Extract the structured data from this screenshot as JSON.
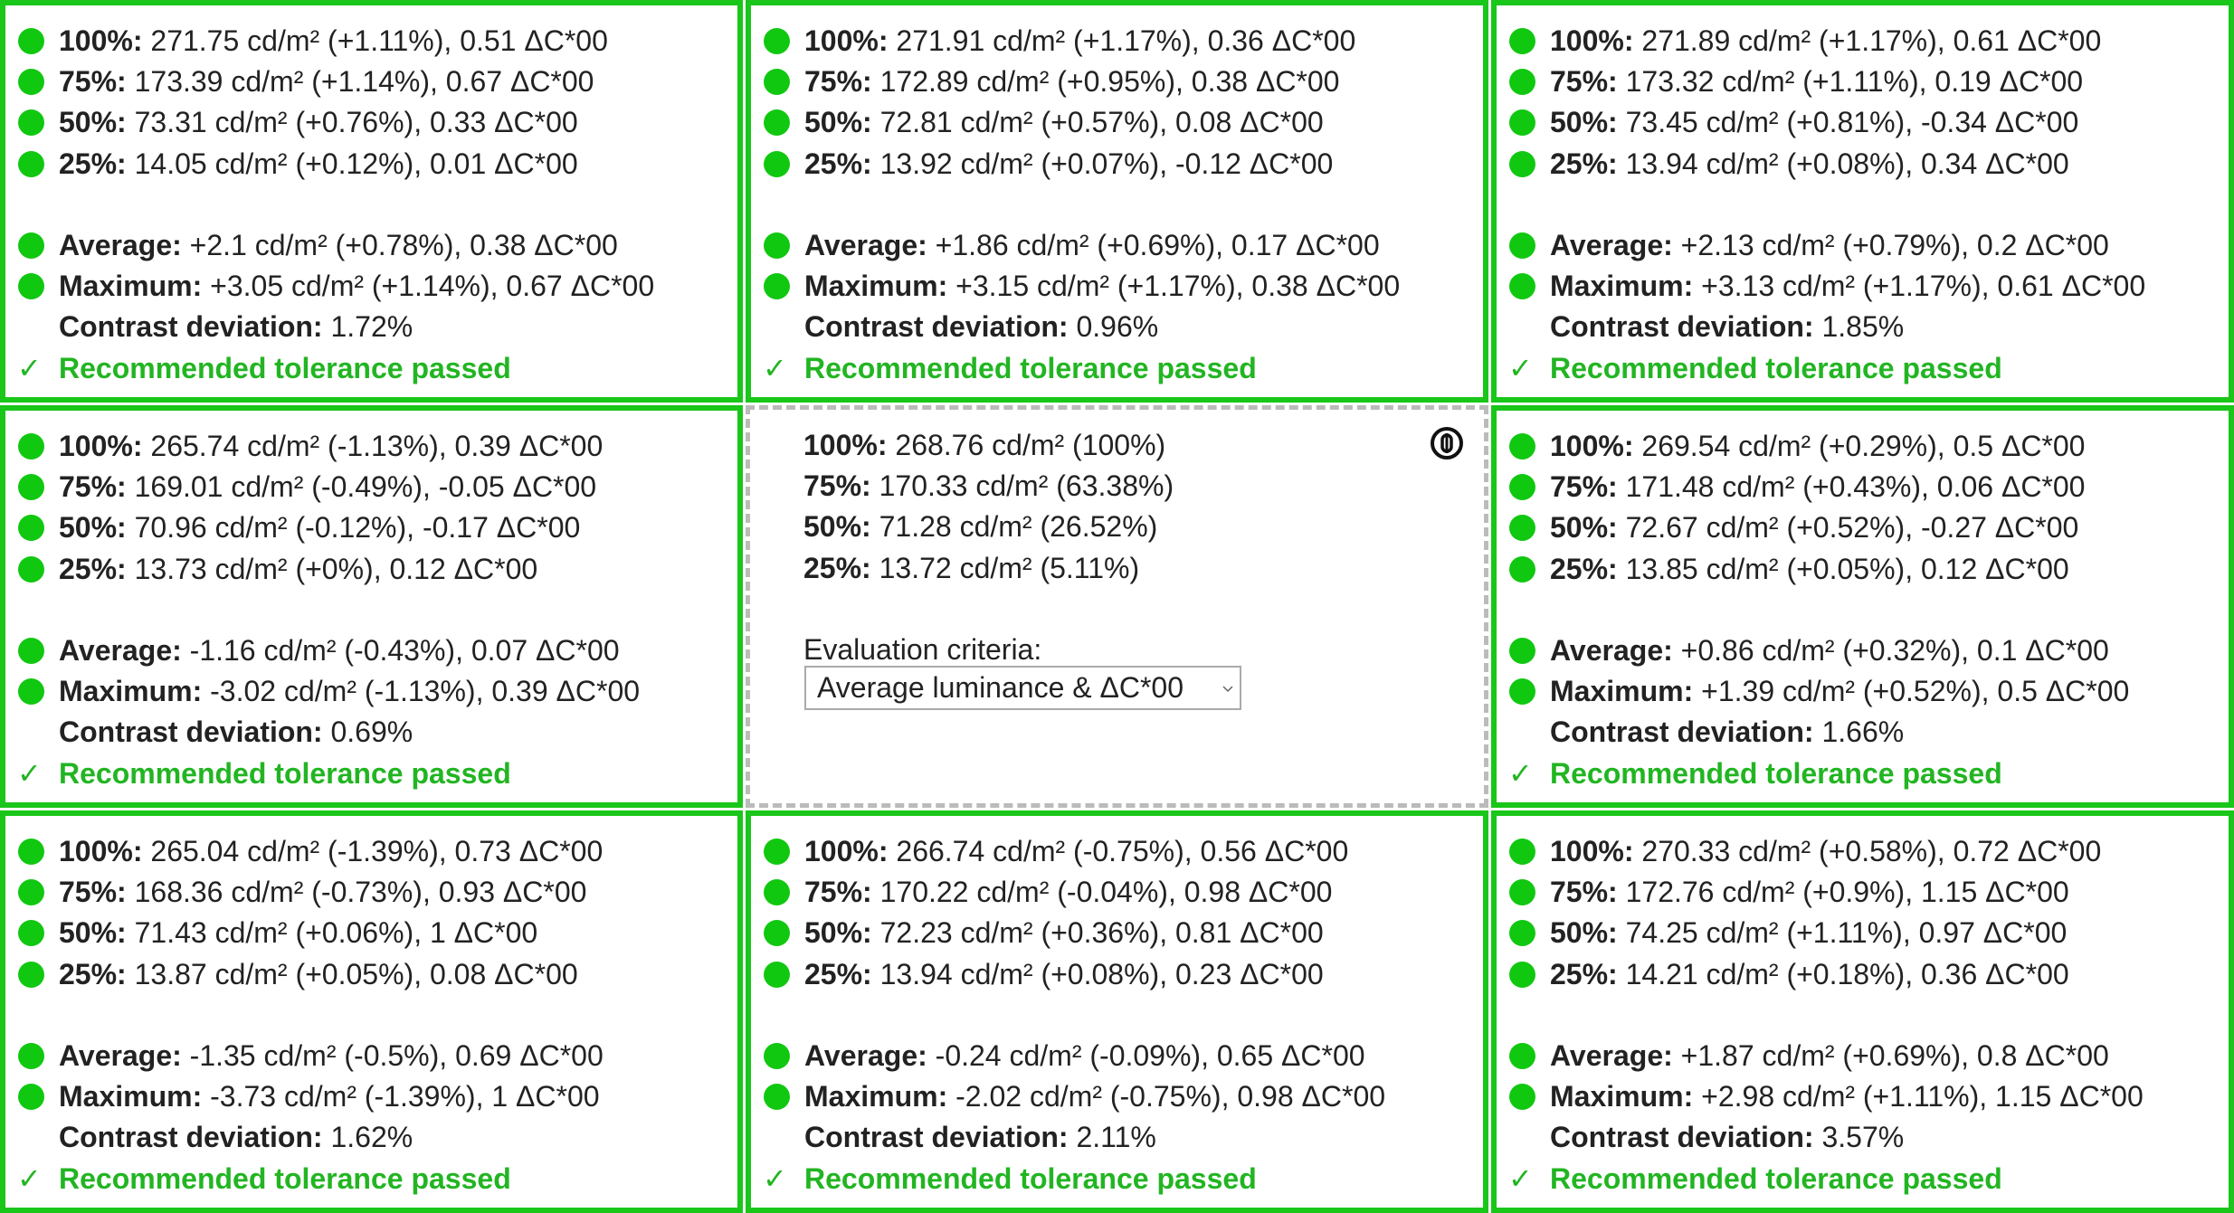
{
  "cells": [
    {
      "measurements": [
        {
          "label": "100%:",
          "text": "271.75 cd/m² (+1.11%), 0.51 ΔC*00"
        },
        {
          "label": "75%:",
          "text": "173.39 cd/m² (+1.14%), 0.67 ΔC*00"
        },
        {
          "label": "50%:",
          "text": "73.31 cd/m² (+0.76%), 0.33 ΔC*00"
        },
        {
          "label": "25%:",
          "text": "14.05 cd/m² (+0.12%), 0.01 ΔC*00"
        }
      ],
      "summary": [
        {
          "label": "Average:",
          "text": "+2.1 cd/m² (+0.78%), 0.38 ΔC*00"
        },
        {
          "label": "Maximum:",
          "text": "+3.05 cd/m² (+1.14%), 0.67 ΔC*00"
        }
      ],
      "contrast": {
        "label": "Contrast deviation:",
        "text": "1.72%"
      },
      "result": {
        "check": "✓",
        "text": "Recommended tolerance passed"
      }
    },
    {
      "measurements": [
        {
          "label": "100%:",
          "text": "271.91 cd/m² (+1.17%), 0.36 ΔC*00"
        },
        {
          "label": "75%:",
          "text": "172.89 cd/m² (+0.95%), 0.38 ΔC*00"
        },
        {
          "label": "50%:",
          "text": "72.81 cd/m² (+0.57%), 0.08 ΔC*00"
        },
        {
          "label": "25%:",
          "text": "13.92 cd/m² (+0.07%), -0.12 ΔC*00"
        }
      ],
      "summary": [
        {
          "label": "Average:",
          "text": "+1.86 cd/m² (+0.69%), 0.17 ΔC*00"
        },
        {
          "label": "Maximum:",
          "text": "+3.15 cd/m² (+1.17%), 0.38 ΔC*00"
        }
      ],
      "contrast": {
        "label": "Contrast deviation:",
        "text": "0.96%"
      },
      "result": {
        "check": "✓",
        "text": "Recommended tolerance passed"
      }
    },
    {
      "measurements": [
        {
          "label": "100%:",
          "text": "271.89 cd/m² (+1.17%), 0.61 ΔC*00"
        },
        {
          "label": "75%:",
          "text": "173.32 cd/m² (+1.11%), 0.19 ΔC*00"
        },
        {
          "label": "50%:",
          "text": "73.45 cd/m² (+0.81%), -0.34 ΔC*00"
        },
        {
          "label": "25%:",
          "text": "13.94 cd/m² (+0.08%), 0.34 ΔC*00"
        }
      ],
      "summary": [
        {
          "label": "Average:",
          "text": "+2.13 cd/m² (+0.79%), 0.2 ΔC*00"
        },
        {
          "label": "Maximum:",
          "text": "+3.13 cd/m² (+1.17%), 0.61 ΔC*00"
        }
      ],
      "contrast": {
        "label": "Contrast deviation:",
        "text": "1.85%"
      },
      "result": {
        "check": "✓",
        "text": "Recommended tolerance passed"
      }
    },
    {
      "measurements": [
        {
          "label": "100%:",
          "text": "265.74 cd/m² (-1.13%), 0.39 ΔC*00"
        },
        {
          "label": "75%:",
          "text": "169.01 cd/m² (-0.49%), -0.05 ΔC*00"
        },
        {
          "label": "50%:",
          "text": "70.96 cd/m² (-0.12%), -0.17 ΔC*00"
        },
        {
          "label": "25%:",
          "text": "13.73 cd/m² (+0%), 0.12 ΔC*00"
        }
      ],
      "summary": [
        {
          "label": "Average:",
          "text": "-1.16 cd/m² (-0.43%), 0.07 ΔC*00"
        },
        {
          "label": "Maximum:",
          "text": "-3.02 cd/m² (-1.13%), 0.39 ΔC*00"
        }
      ],
      "contrast": {
        "label": "Contrast deviation:",
        "text": "0.69%"
      },
      "result": {
        "check": "✓",
        "text": "Recommended tolerance passed"
      }
    },
    {
      "measurements": [
        {
          "label": "100%:",
          "text": "268.76 cd/m² (100%)"
        },
        {
          "label": "75%:",
          "text": "170.33 cd/m² (63.38%)"
        },
        {
          "label": "50%:",
          "text": "71.28 cd/m² (26.52%)"
        },
        {
          "label": "25%:",
          "text": "13.72 cd/m² (5.11%)"
        }
      ],
      "criteria": {
        "label": "Evaluation criteria:",
        "selected": "Average luminance & ΔC*00"
      }
    },
    {
      "measurements": [
        {
          "label": "100%:",
          "text": "269.54 cd/m² (+0.29%), 0.5 ΔC*00"
        },
        {
          "label": "75%:",
          "text": "171.48 cd/m² (+0.43%), 0.06 ΔC*00"
        },
        {
          "label": "50%:",
          "text": "72.67 cd/m² (+0.52%), -0.27 ΔC*00"
        },
        {
          "label": "25%:",
          "text": "13.85 cd/m² (+0.05%), 0.12 ΔC*00"
        }
      ],
      "summary": [
        {
          "label": "Average:",
          "text": "+0.86 cd/m² (+0.32%), 0.1 ΔC*00"
        },
        {
          "label": "Maximum:",
          "text": "+1.39 cd/m² (+0.52%), 0.5 ΔC*00"
        }
      ],
      "contrast": {
        "label": "Contrast deviation:",
        "text": "1.66%"
      },
      "result": {
        "check": "✓",
        "text": "Recommended tolerance passed"
      }
    },
    {
      "measurements": [
        {
          "label": "100%:",
          "text": "265.04 cd/m² (-1.39%), 0.73 ΔC*00"
        },
        {
          "label": "75%:",
          "text": "168.36 cd/m² (-0.73%), 0.93 ΔC*00"
        },
        {
          "label": "50%:",
          "text": "71.43 cd/m² (+0.06%), 1 ΔC*00"
        },
        {
          "label": "25%:",
          "text": "13.87 cd/m² (+0.05%), 0.08 ΔC*00"
        }
      ],
      "summary": [
        {
          "label": "Average:",
          "text": "-1.35 cd/m² (-0.5%), 0.69 ΔC*00"
        },
        {
          "label": "Maximum:",
          "text": "-3.73 cd/m² (-1.39%), 1 ΔC*00"
        }
      ],
      "contrast": {
        "label": "Contrast deviation:",
        "text": "1.62%"
      },
      "result": {
        "check": "✓",
        "text": "Recommended tolerance passed"
      }
    },
    {
      "measurements": [
        {
          "label": "100%:",
          "text": "266.74 cd/m² (-0.75%), 0.56 ΔC*00"
        },
        {
          "label": "75%:",
          "text": "170.22 cd/m² (-0.04%), 0.98 ΔC*00"
        },
        {
          "label": "50%:",
          "text": "72.23 cd/m² (+0.36%), 0.81 ΔC*00"
        },
        {
          "label": "25%:",
          "text": "13.94 cd/m² (+0.08%), 0.23 ΔC*00"
        }
      ],
      "summary": [
        {
          "label": "Average:",
          "text": "-0.24 cd/m² (-0.09%), 0.65 ΔC*00"
        },
        {
          "label": "Maximum:",
          "text": "-2.02 cd/m² (-0.75%), 0.98 ΔC*00"
        }
      ],
      "contrast": {
        "label": "Contrast deviation:",
        "text": "2.11%"
      },
      "result": {
        "check": "✓",
        "text": "Recommended tolerance passed"
      }
    },
    {
      "measurements": [
        {
          "label": "100%:",
          "text": "270.33 cd/m² (+0.58%), 0.72 ΔC*00"
        },
        {
          "label": "75%:",
          "text": "172.76 cd/m² (+0.9%), 1.15 ΔC*00"
        },
        {
          "label": "50%:",
          "text": "74.25 cd/m² (+1.11%), 0.97 ΔC*00"
        },
        {
          "label": "25%:",
          "text": "14.21 cd/m² (+0.18%), 0.36 ΔC*00"
        }
      ],
      "summary": [
        {
          "label": "Average:",
          "text": "+1.87 cd/m² (+0.69%), 0.8 ΔC*00"
        },
        {
          "label": "Maximum:",
          "text": "+2.98 cd/m² (+1.11%), 1.15 ΔC*00"
        }
      ],
      "contrast": {
        "label": "Contrast deviation:",
        "text": "3.57%"
      },
      "result": {
        "check": "✓",
        "text": "Recommended tolerance passed"
      }
    }
  ]
}
